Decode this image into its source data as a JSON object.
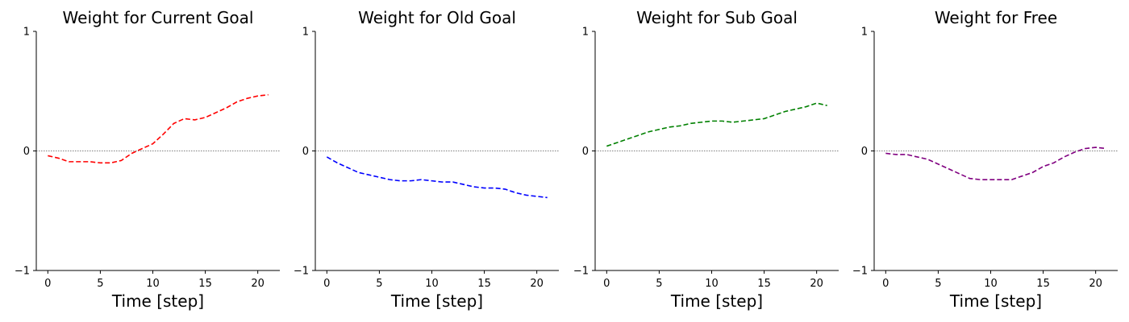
{
  "chart_data": [
    {
      "type": "line",
      "title": "Weight for Current Goal",
      "xlabel": "Time [step]",
      "ylabel": "",
      "xlim": [
        -1.1,
        22.1
      ],
      "ylim": [
        -1,
        1
      ],
      "xticks": [
        0,
        5,
        10,
        15,
        20
      ],
      "yticks": [
        -1,
        0,
        1
      ],
      "x": [
        0,
        1,
        2,
        3,
        4,
        5,
        6,
        7,
        8,
        9,
        10,
        11,
        12,
        13,
        14,
        15,
        16,
        17,
        18,
        19,
        20,
        21
      ],
      "series": [
        {
          "color": "#ff0000",
          "linestyle": "dashed",
          "values": [
            -0.04,
            -0.06,
            -0.09,
            -0.09,
            -0.09,
            -0.1,
            -0.1,
            -0.08,
            -0.02,
            0.02,
            0.06,
            0.14,
            0.23,
            0.27,
            0.26,
            0.28,
            0.32,
            0.36,
            0.41,
            0.44,
            0.46,
            0.47
          ]
        }
      ],
      "reference_line": {
        "y": 0,
        "style": "dotted",
        "color": "#555555"
      }
    },
    {
      "type": "line",
      "title": "Weight for Old Goal",
      "xlabel": "Time [step]",
      "ylabel": "",
      "xlim": [
        -1.1,
        22.1
      ],
      "ylim": [
        -1,
        1
      ],
      "xticks": [
        0,
        5,
        10,
        15,
        20
      ],
      "yticks": [
        -1,
        0,
        1
      ],
      "x": [
        0,
        1,
        2,
        3,
        4,
        5,
        6,
        7,
        8,
        9,
        10,
        11,
        12,
        13,
        14,
        15,
        16,
        17,
        18,
        19,
        20,
        21
      ],
      "series": [
        {
          "color": "#0000ff",
          "linestyle": "dashed",
          "values": [
            -0.05,
            -0.1,
            -0.14,
            -0.18,
            -0.2,
            -0.22,
            -0.24,
            -0.25,
            -0.25,
            -0.24,
            -0.25,
            -0.26,
            -0.26,
            -0.28,
            -0.3,
            -0.31,
            -0.31,
            -0.32,
            -0.35,
            -0.37,
            -0.38,
            -0.39
          ]
        }
      ],
      "reference_line": {
        "y": 0,
        "style": "dotted",
        "color": "#555555"
      }
    },
    {
      "type": "line",
      "title": "Weight for Sub Goal",
      "xlabel": "Time [step]",
      "ylabel": "",
      "xlim": [
        -1.1,
        22.1
      ],
      "ylim": [
        -1,
        1
      ],
      "xticks": [
        0,
        5,
        10,
        15,
        20
      ],
      "yticks": [
        -1,
        0,
        1
      ],
      "x": [
        0,
        1,
        2,
        3,
        4,
        5,
        6,
        7,
        8,
        9,
        10,
        11,
        12,
        13,
        14,
        15,
        16,
        17,
        18,
        19,
        20,
        21
      ],
      "series": [
        {
          "color": "#008000",
          "linestyle": "dashed",
          "values": [
            0.04,
            0.07,
            0.1,
            0.13,
            0.16,
            0.18,
            0.2,
            0.21,
            0.23,
            0.24,
            0.25,
            0.25,
            0.24,
            0.25,
            0.26,
            0.27,
            0.3,
            0.33,
            0.35,
            0.37,
            0.4,
            0.38
          ]
        }
      ],
      "reference_line": {
        "y": 0,
        "style": "dotted",
        "color": "#555555"
      }
    },
    {
      "type": "line",
      "title": "Weight for Free",
      "xlabel": "Time [step]",
      "ylabel": "",
      "xlim": [
        -1.1,
        22.1
      ],
      "ylim": [
        -1,
        1
      ],
      "xticks": [
        0,
        5,
        10,
        15,
        20
      ],
      "yticks": [
        -1,
        0,
        1
      ],
      "x": [
        0,
        1,
        2,
        3,
        4,
        5,
        6,
        7,
        8,
        9,
        10,
        11,
        12,
        13,
        14,
        15,
        16,
        17,
        18,
        19,
        20,
        21
      ],
      "series": [
        {
          "color": "#800080",
          "linestyle": "dashed",
          "values": [
            -0.02,
            -0.03,
            -0.03,
            -0.05,
            -0.07,
            -0.11,
            -0.15,
            -0.19,
            -0.23,
            -0.24,
            -0.24,
            -0.24,
            -0.24,
            -0.21,
            -0.18,
            -0.13,
            -0.1,
            -0.05,
            -0.01,
            0.02,
            0.03,
            0.02
          ]
        }
      ],
      "reference_line": {
        "y": 0,
        "style": "dotted",
        "color": "#555555"
      }
    }
  ]
}
